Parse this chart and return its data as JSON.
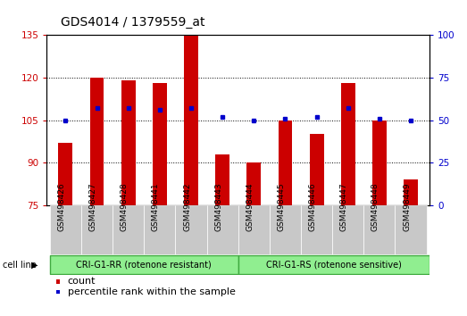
{
  "title": "GDS4014 / 1379559_at",
  "samples": [
    "GSM498426",
    "GSM498427",
    "GSM498428",
    "GSM498441",
    "GSM498442",
    "GSM498443",
    "GSM498444",
    "GSM498445",
    "GSM498446",
    "GSM498447",
    "GSM498448",
    "GSM498449"
  ],
  "counts": [
    97,
    120,
    119,
    118,
    135,
    93,
    90,
    105,
    100,
    118,
    105,
    84
  ],
  "percentile_ranks": [
    50,
    57,
    57,
    56,
    57,
    52,
    50,
    51,
    52,
    57,
    51,
    50
  ],
  "ylim_left": [
    75,
    135
  ],
  "ylim_right": [
    0,
    100
  ],
  "yticks_left": [
    75,
    90,
    105,
    120,
    135
  ],
  "yticks_right": [
    0,
    25,
    50,
    75,
    100
  ],
  "left_color": "#cc0000",
  "right_color": "#0000cc",
  "bar_width": 0.45,
  "group1_label": "CRI-G1-RR (rotenone resistant)",
  "group2_label": "CRI-G1-RS (rotenone sensitive)",
  "cell_line_label": "cell line",
  "legend_count": "count",
  "legend_pct": "percentile rank within the sample",
  "tick_label_bg": "#c8c8c8",
  "group_bg": "#90ee90",
  "group_border": "#40aa40",
  "title_fontsize": 10,
  "axis_fontsize": 7.5,
  "tick_fontsize": 6.5,
  "legend_fontsize": 8
}
